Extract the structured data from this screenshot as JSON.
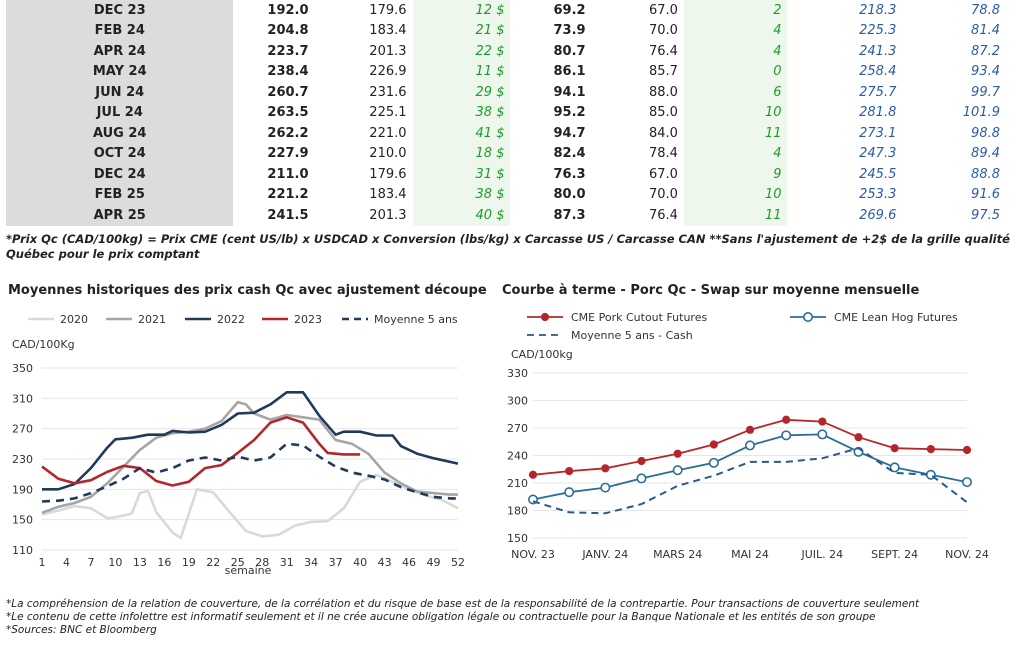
{
  "table": {
    "rows": [
      [
        "DEC 23",
        "192.0",
        "179.6",
        "12 $",
        "69.2",
        "67.0",
        "2",
        "218.3",
        "78.8"
      ],
      [
        "FEB 24",
        "204.8",
        "183.4",
        "21 $",
        "73.9",
        "70.0",
        "4",
        "225.3",
        "81.4"
      ],
      [
        "APR 24",
        "223.7",
        "201.3",
        "22 $",
        "80.7",
        "76.4",
        "4",
        "241.3",
        "87.2"
      ],
      [
        "MAY 24",
        "238.4",
        "226.9",
        "11 $",
        "86.1",
        "85.7",
        "0",
        "258.4",
        "93.4"
      ],
      [
        "JUN 24",
        "260.7",
        "231.6",
        "29 $",
        "94.1",
        "88.0",
        "6",
        "275.7",
        "99.7"
      ],
      [
        "JUL 24",
        "263.5",
        "225.1",
        "38 $",
        "95.2",
        "85.0",
        "10",
        "281.8",
        "101.9"
      ],
      [
        "AUG 24",
        "262.2",
        "221.0",
        "41 $",
        "94.7",
        "84.0",
        "11",
        "273.1",
        "98.8"
      ],
      [
        "OCT 24",
        "227.9",
        "210.0",
        "18 $",
        "82.4",
        "78.4",
        "4",
        "247.3",
        "89.4"
      ],
      [
        "DEC 24",
        "211.0",
        "179.6",
        "31 $",
        "76.3",
        "67.0",
        "9",
        "245.5",
        "88.8"
      ],
      [
        "FEB 25",
        "221.2",
        "183.4",
        "38 $",
        "80.0",
        "70.0",
        "10",
        "253.3",
        "91.6"
      ],
      [
        "APR 25",
        "241.5",
        "201.3",
        "40 $",
        "87.3",
        "76.4",
        "11",
        "269.6",
        "97.5"
      ]
    ]
  },
  "footnote_top": "*Prix Qc (CAD/100kg) = Prix CME (cent US/lb) x USDCAD x Conversion (lbs/kg) x Carcasse US / Carcasse CAN **Sans l'ajustement de +2$ de la grille qualité Québec pour le prix comptant",
  "chart_data": [
    {
      "type": "line",
      "title": "Moyennes historiques des prix cash Qc avec ajustement découpe",
      "ylabel": "CAD/100Kg",
      "xlabel": "semaine",
      "ylim": [
        110,
        350
      ],
      "yticks": [
        110,
        150,
        190,
        230,
        270,
        310,
        350
      ],
      "xlim": [
        1,
        52
      ],
      "xticks": [
        1,
        4,
        7,
        10,
        13,
        16,
        19,
        22,
        25,
        28,
        31,
        34,
        37,
        40,
        43,
        46,
        49,
        52
      ],
      "xtick_labels": [
        "1",
        "4",
        "7",
        "10",
        "13",
        "16",
        "19",
        "22",
        "25",
        "28",
        "31",
        "34",
        "37",
        "40",
        "43",
        "46",
        "49",
        "52"
      ],
      "grid": true,
      "legend": "top",
      "series": [
        {
          "name": "2020",
          "color": "#d9d9d9",
          "dash": false,
          "x": [
            1,
            3,
            5,
            7,
            9,
            10,
            12,
            13,
            14,
            15,
            17,
            18,
            20,
            22,
            24,
            26,
            28,
            30,
            32,
            34,
            36,
            38,
            40,
            42,
            44,
            46,
            48,
            50,
            52
          ],
          "y": [
            157,
            162,
            168,
            165,
            152,
            153,
            158,
            185,
            188,
            160,
            133,
            126,
            190,
            186,
            160,
            135,
            128,
            130,
            142,
            147,
            148,
            165,
            200,
            209,
            200,
            190,
            182,
            176,
            165
          ]
        },
        {
          "name": "2021",
          "color": "#a6a6a6",
          "dash": false,
          "x": [
            1,
            3,
            5,
            7,
            9,
            11,
            13,
            15,
            17,
            19,
            21,
            23,
            25,
            26,
            27,
            29,
            31,
            33,
            35,
            37,
            39,
            41,
            43,
            45,
            47,
            49,
            51,
            52
          ],
          "y": [
            159,
            167,
            172,
            180,
            198,
            220,
            242,
            258,
            264,
            266,
            270,
            280,
            305,
            302,
            290,
            282,
            288,
            285,
            282,
            255,
            250,
            237,
            212,
            198,
            187,
            185,
            183,
            183
          ]
        },
        {
          "name": "2022",
          "color": "#1f3a5a",
          "dash": false,
          "x": [
            1,
            3,
            5,
            7,
            9,
            10,
            12,
            14,
            16,
            17,
            19,
            21,
            23,
            25,
            27,
            29,
            31,
            33,
            35,
            37,
            38,
            40,
            42,
            44,
            45,
            47,
            49,
            52
          ],
          "y": [
            190,
            190,
            197,
            218,
            245,
            256,
            258,
            262,
            262,
            267,
            265,
            266,
            275,
            290,
            291,
            302,
            318,
            318,
            287,
            262,
            266,
            266,
            261,
            261,
            247,
            237,
            231,
            224
          ]
        },
        {
          "name": "2023",
          "color": "#b5262b",
          "dash": false,
          "x": [
            1,
            3,
            5,
            7,
            9,
            11,
            13,
            15,
            17,
            19,
            21,
            23,
            25,
            27,
            29,
            31,
            33,
            35,
            36,
            38,
            40
          ],
          "y": [
            220,
            204,
            198,
            202,
            213,
            221,
            218,
            201,
            195,
            200,
            218,
            222,
            238,
            255,
            278,
            285,
            278,
            250,
            238,
            236,
            236
          ]
        },
        {
          "name": "Moyenne 5 ans",
          "color": "#1f3a5a",
          "dash": true,
          "x": [
            1,
            3,
            5,
            7,
            9,
            11,
            13,
            15,
            17,
            19,
            21,
            23,
            25,
            27,
            29,
            31,
            33,
            35,
            37,
            39,
            41,
            43,
            45,
            47,
            49,
            51,
            52
          ],
          "y": [
            174,
            175,
            178,
            185,
            194,
            204,
            218,
            212,
            218,
            228,
            232,
            228,
            233,
            228,
            232,
            250,
            248,
            233,
            220,
            212,
            208,
            203,
            193,
            186,
            180,
            178,
            178
          ]
        }
      ]
    },
    {
      "type": "line",
      "title": "Courbe à terme - Porc Qc - Swap sur moyenne mensuelle",
      "ylabel": "CAD/100kg",
      "ylim": [
        150,
        330
      ],
      "yticks": [
        150,
        180,
        210,
        240,
        270,
        300,
        330
      ],
      "categories": [
        "NOV. 23",
        "DÉC. 23",
        "JANV. 24",
        "FÉVR. 24",
        "MARS 24",
        "AVR. 24",
        "MAI 24",
        "JUIN 24",
        "JUIL. 24",
        "AOÛT 24",
        "SEPT. 24",
        "OCT. 24",
        "NOV. 24"
      ],
      "xtick_labels": [
        "NOV. 23",
        "",
        "JANV. 24",
        "",
        "MARS 24",
        "",
        "MAI 24",
        "",
        "JUIL. 24",
        "",
        "SEPT. 24",
        "",
        "NOV. 24"
      ],
      "grid": true,
      "legend": "top",
      "series": [
        {
          "name": "CME Pork Cutout Futures",
          "color": "#b5262b",
          "marker": "filled",
          "dash": false,
          "values": [
            219,
            223,
            226,
            234,
            242,
            252,
            268,
            279,
            277,
            260,
            248,
            247,
            246
          ]
        },
        {
          "name": "CME Lean Hog Futures",
          "color": "#2a6f97",
          "marker": "hollow",
          "dash": false,
          "values": [
            192,
            200,
            205,
            215,
            224,
            232,
            251,
            262,
            263,
            244,
            227,
            219,
            211
          ]
        },
        {
          "name": "Moyenne 5 ans - Cash",
          "color": "#2a5a8a",
          "marker": "none",
          "dash": true,
          "values": [
            190,
            178,
            177,
            187,
            207,
            218,
            233,
            233,
            237,
            248,
            221,
            219,
            189
          ]
        }
      ]
    }
  ],
  "footnote_bottom": [
    "*La compréhension de la relation de couverture, de la corrélation et du risque de base est de la responsabilité de la contrepartie. Pour transactions de couverture seulement",
    "*Le contenu de cette infolettre est informatif seulement et il ne crée aucune obligation légale ou contractuelle pour la Banque Nationale et les entités de son groupe",
    "*Sources: BNC et Bloomberg"
  ]
}
